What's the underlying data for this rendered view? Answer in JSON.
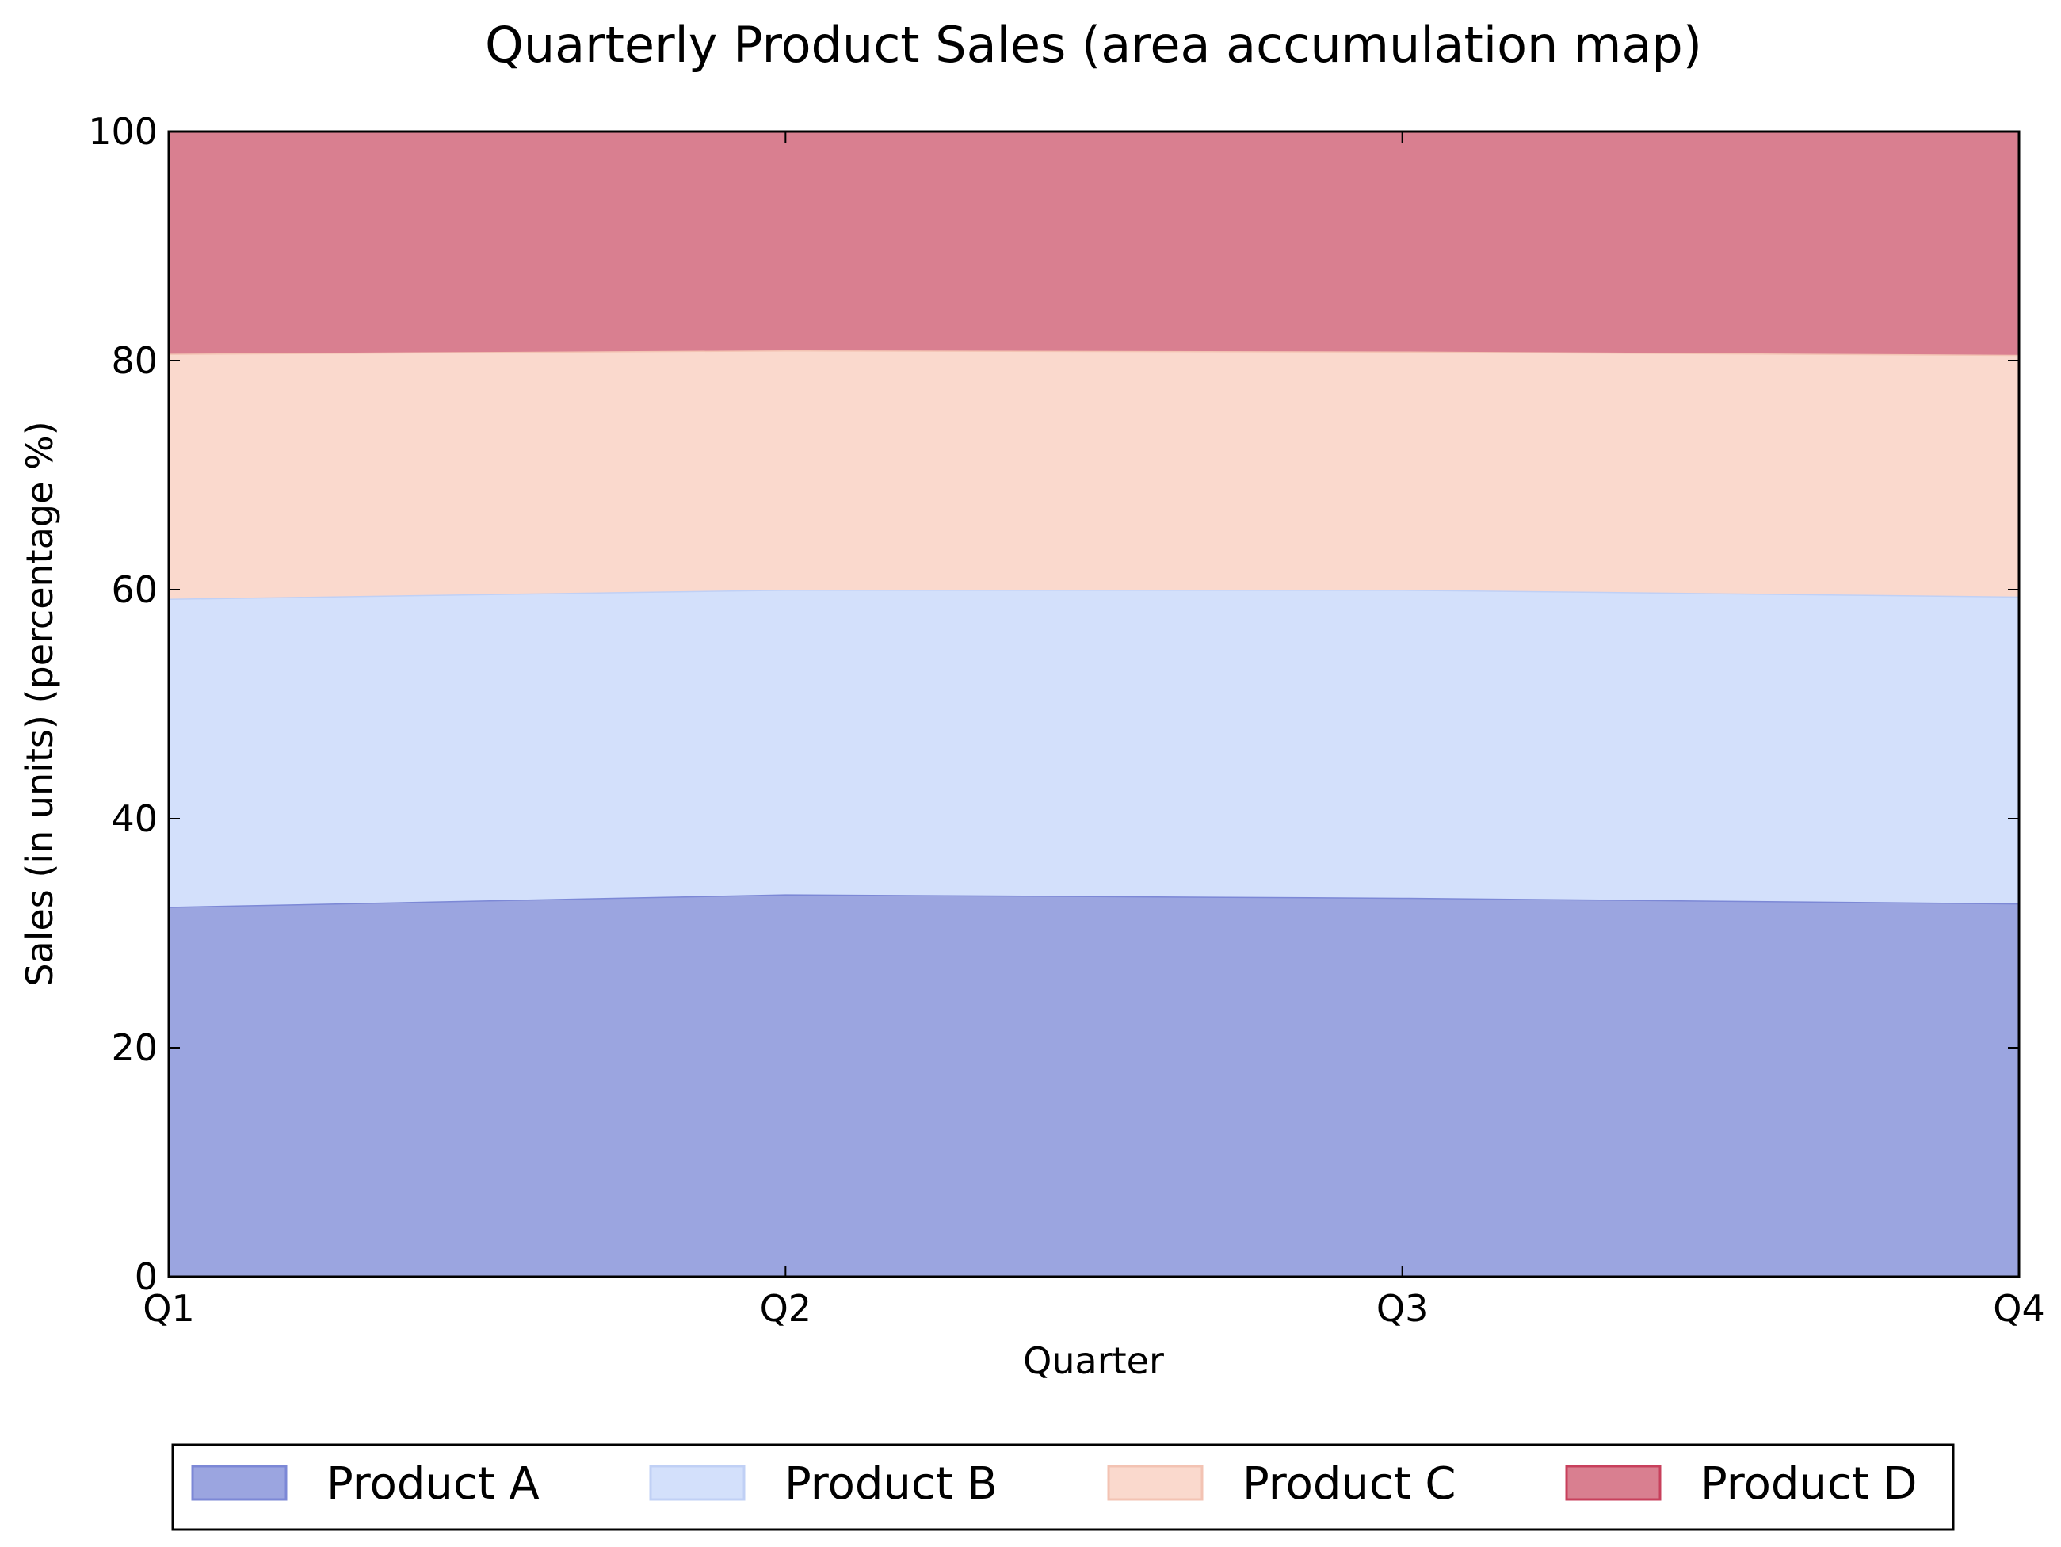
{
  "chart_data": {
    "type": "area",
    "stacked": true,
    "title": "Quarterly Product Sales (area accumulation map)",
    "xlabel": "Quarter",
    "ylabel": "Sales (in units) (percentage %)",
    "categories": [
      "Q1",
      "Q2",
      "Q3",
      "Q4"
    ],
    "ylim": [
      0,
      100
    ],
    "yticks": [
      "0",
      "20",
      "40",
      "60",
      "80",
      "100"
    ],
    "grid": false,
    "legend_position": "bottom-center",
    "series": [
      {
        "name": "Product A",
        "values": [
          32.3,
          33.4,
          33.1,
          32.6
        ],
        "fill": "#9ba5e0",
        "edge": "#7c88d6"
      },
      {
        "name": "Product B",
        "values": [
          26.9,
          26.6,
          26.9,
          26.8
        ],
        "fill": "#d3e0fb",
        "edge": "#c0d0f5"
      },
      {
        "name": "Product C",
        "values": [
          21.4,
          20.9,
          20.8,
          21.1
        ],
        "fill": "#fad9cd",
        "edge": "#f3c3b3"
      },
      {
        "name": "Product D",
        "values": [
          19.4,
          19.1,
          19.2,
          19.5
        ],
        "fill": "#d97f90",
        "edge": "#c8405c"
      }
    ]
  }
}
